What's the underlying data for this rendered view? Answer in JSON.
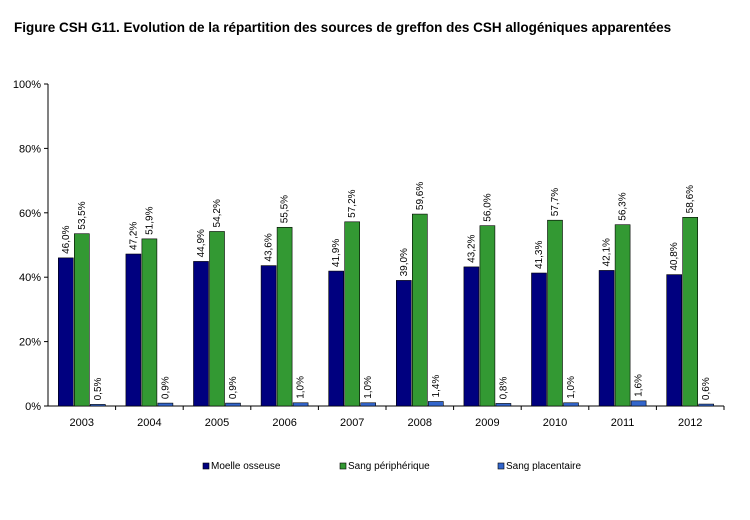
{
  "title": "Figure CSH G11. Evolution de la répartition des sources de greffon des CSH allogéniques apparentées",
  "chart_data": {
    "type": "bar",
    "categories": [
      "2003",
      "2004",
      "2005",
      "2006",
      "2007",
      "2008",
      "2009",
      "2010",
      "2011",
      "2012"
    ],
    "series": [
      {
        "name": "Moelle osseuse",
        "color": "#00007f",
        "values": [
          46.0,
          47.2,
          44.9,
          43.6,
          41.9,
          39.0,
          43.2,
          41.3,
          42.1,
          40.8
        ],
        "labels": [
          "46,0%",
          "47,2%",
          "44,9%",
          "43,6%",
          "41,9%",
          "39,0%",
          "43,2%",
          "41,3%",
          "42,1%",
          "40,8%"
        ]
      },
      {
        "name": "Sang périphérique",
        "color": "#339933",
        "values": [
          53.5,
          51.9,
          54.2,
          55.5,
          57.2,
          59.6,
          56.0,
          57.7,
          56.3,
          58.6
        ],
        "labels": [
          "53,5%",
          "51,9%",
          "54,2%",
          "55,5%",
          "57,2%",
          "59,6%",
          "56,0%",
          "57,7%",
          "56,3%",
          "58,6%"
        ]
      },
      {
        "name": "Sang placentaire",
        "color": "#3366cc",
        "values": [
          0.5,
          0.9,
          0.9,
          1.0,
          1.0,
          1.4,
          0.8,
          1.0,
          1.6,
          0.6
        ],
        "labels": [
          "0,5%",
          "0,9%",
          "0,9%",
          "1,0%",
          "1,0%",
          "1,4%",
          "0,8%",
          "1,0%",
          "1,6%",
          "0,6%"
        ]
      }
    ],
    "ylim": [
      0,
      100
    ],
    "yticks": [
      "0%",
      "20%",
      "40%",
      "60%",
      "80%",
      "100%"
    ],
    "grid": false,
    "legend_position": "bottom",
    "data_labels_rotation": "vertical"
  }
}
